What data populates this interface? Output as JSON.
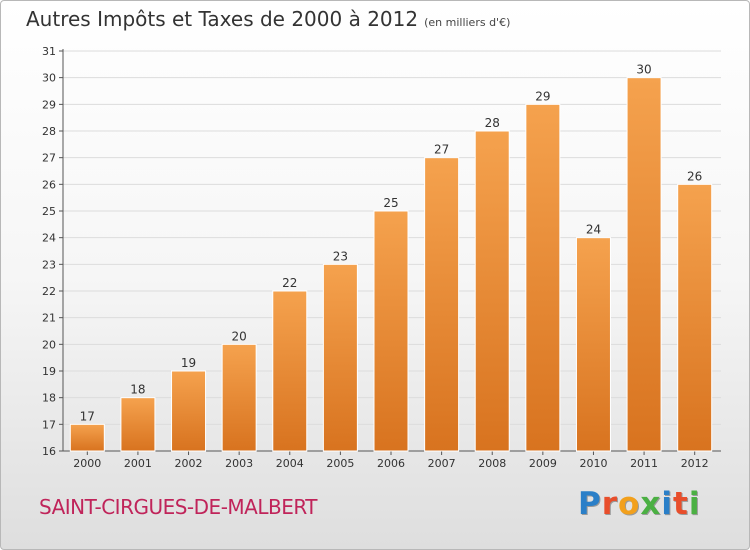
{
  "header": {
    "title": "Autres Impôts et Taxes de 2000 à 2012",
    "unit": "(en milliers d'€)"
  },
  "commune": "SAINT-CIRGUES-DE-MALBERT",
  "brand": {
    "letters": [
      {
        "ch": "P",
        "color": "#2a7fc8"
      },
      {
        "ch": "r",
        "color": "#e84e2b"
      },
      {
        "ch": "o",
        "color": "#f2a01c"
      },
      {
        "ch": "x",
        "color": "#4bb043"
      },
      {
        "ch": "i",
        "color": "#2a7fc8"
      },
      {
        "ch": "t",
        "color": "#e84e2b"
      },
      {
        "ch": "i",
        "color": "#4bb043"
      }
    ]
  },
  "chart_data": {
    "type": "bar",
    "categories": [
      "2000",
      "2001",
      "2002",
      "2003",
      "2004",
      "2005",
      "2006",
      "2007",
      "2008",
      "2009",
      "2010",
      "2011",
      "2012"
    ],
    "values": [
      17,
      18,
      19,
      20,
      22,
      23,
      25,
      27,
      28,
      29,
      24,
      30,
      26
    ],
    "title": "Autres Impôts et Taxes de 2000 à 2012",
    "ylim": [
      16,
      31
    ],
    "yticks": [
      16,
      17,
      18,
      19,
      20,
      21,
      22,
      23,
      24,
      25,
      26,
      27,
      28,
      29,
      30,
      31
    ],
    "grid": true,
    "colors": {
      "bar_light": "#f5a24e",
      "bar_dark": "#d8731f",
      "grid": "#dcdcdc",
      "axis": "#555555"
    }
  }
}
